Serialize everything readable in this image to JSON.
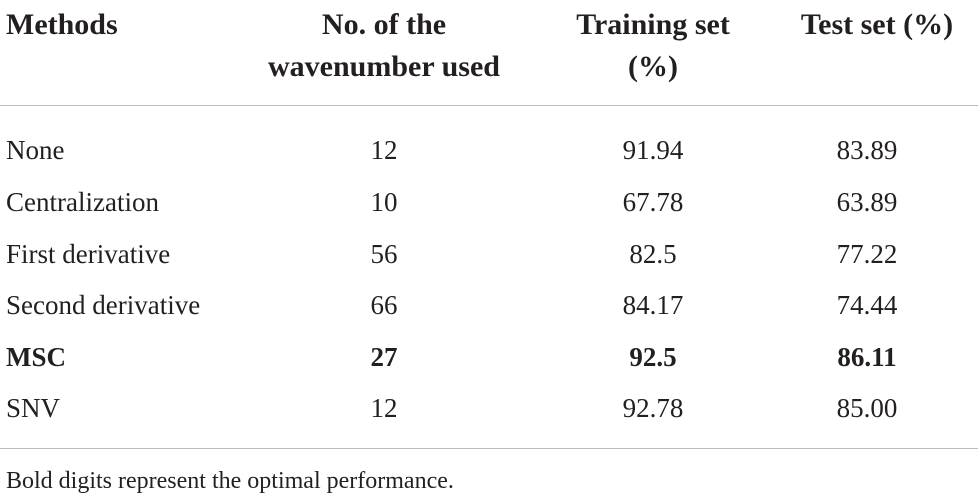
{
  "table": {
    "headers": {
      "methods": "Methods",
      "wavenumber": [
        "No. of the",
        "wavenumber used"
      ],
      "training": [
        "Training set",
        "(%)"
      ],
      "test": "Test set (%)"
    },
    "rows": [
      {
        "method": "None",
        "wavenumber": "12",
        "training": "91.94",
        "test": "83.89",
        "bold": false
      },
      {
        "method": "Centralization",
        "wavenumber": "10",
        "training": "67.78",
        "test": "63.89",
        "bold": false
      },
      {
        "method": "First derivative",
        "wavenumber": "56",
        "training": "82.5",
        "test": "77.22",
        "bold": false
      },
      {
        "method": "Second derivative",
        "wavenumber": "66",
        "training": "84.17",
        "test": "74.44",
        "bold": false
      },
      {
        "method": "MSC",
        "wavenumber": "27",
        "training": "92.5",
        "test": "86.11",
        "bold": true
      },
      {
        "method": "SNV",
        "wavenumber": "12",
        "training": "92.78",
        "test": "85.00",
        "bold": false
      }
    ],
    "footnote": "Bold digits represent the optimal performance."
  }
}
